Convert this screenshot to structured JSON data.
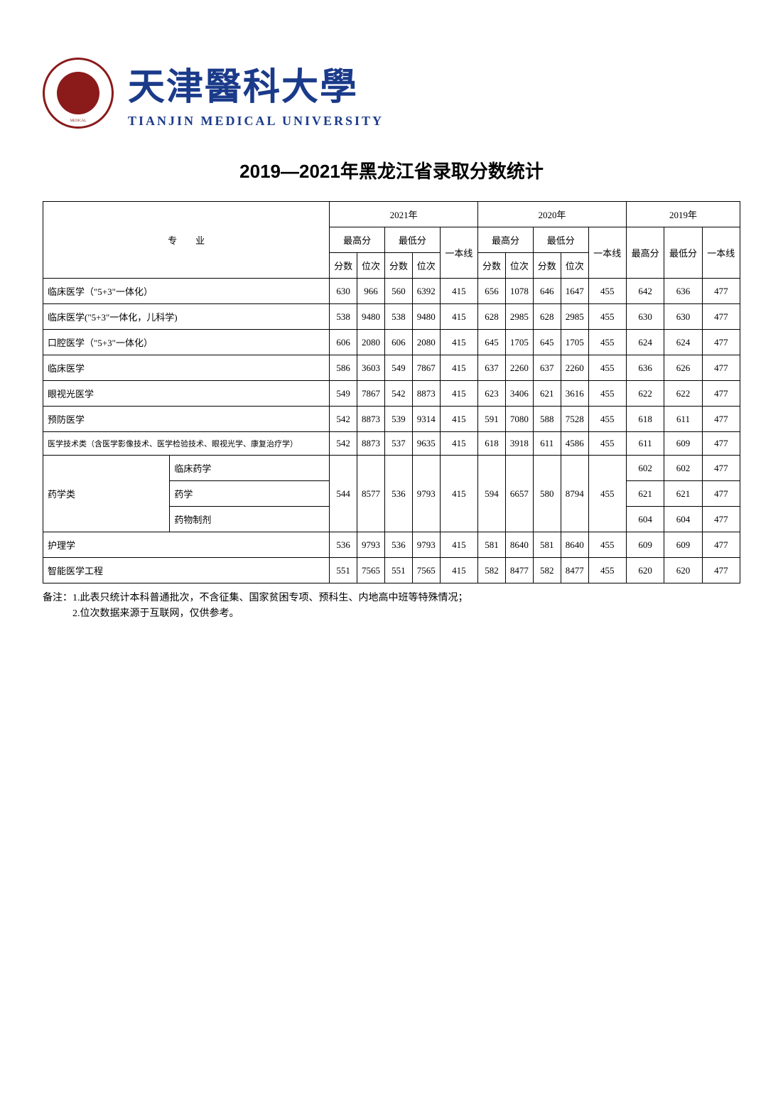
{
  "header": {
    "cn_name": "天津醫科大學",
    "en_name": "TIANJIN MEDICAL UNIVERSITY",
    "logo_text": "MEDICAL"
  },
  "title": "2019—2021年黑龙江省录取分数统计",
  "colors": {
    "logo_red": "#8b1a1a",
    "name_blue": "#1a3a8a",
    "border": "#000000",
    "background": "#ffffff"
  },
  "table": {
    "header_major": "专　　业",
    "year_2021": "2021年",
    "year_2020": "2020年",
    "year_2019": "2019年",
    "max_score": "最高分",
    "min_score": "最低分",
    "score_col": "分数",
    "rank_col": "位次",
    "line_col": "一本线",
    "max_col_2019": "最高分",
    "min_col_2019": "最低分"
  },
  "rows": [
    {
      "major": "临床医学（\"5+3\"一体化）",
      "y21_max_s": 630,
      "y21_max_r": 966,
      "y21_min_s": 560,
      "y21_min_r": 6392,
      "y21_line": 415,
      "y20_max_s": 656,
      "y20_max_r": 1078,
      "y20_min_s": 646,
      "y20_min_r": 1647,
      "y20_line": 455,
      "y19_max": 642,
      "y19_min": 636,
      "y19_line": 477
    },
    {
      "major": "临床医学(\"5+3\"一体化，儿科学)",
      "y21_max_s": 538,
      "y21_max_r": 9480,
      "y21_min_s": 538,
      "y21_min_r": 9480,
      "y21_line": 415,
      "y20_max_s": 628,
      "y20_max_r": 2985,
      "y20_min_s": 628,
      "y20_min_r": 2985,
      "y20_line": 455,
      "y19_max": 630,
      "y19_min": 630,
      "y19_line": 477
    },
    {
      "major": "口腔医学（\"5+3\"一体化）",
      "y21_max_s": 606,
      "y21_max_r": 2080,
      "y21_min_s": 606,
      "y21_min_r": 2080,
      "y21_line": 415,
      "y20_max_s": 645,
      "y20_max_r": 1705,
      "y20_min_s": 645,
      "y20_min_r": 1705,
      "y20_line": 455,
      "y19_max": 624,
      "y19_min": 624,
      "y19_line": 477
    },
    {
      "major": "临床医学",
      "y21_max_s": 586,
      "y21_max_r": 3603,
      "y21_min_s": 549,
      "y21_min_r": 7867,
      "y21_line": 415,
      "y20_max_s": 637,
      "y20_max_r": 2260,
      "y20_min_s": 637,
      "y20_min_r": 2260,
      "y20_line": 455,
      "y19_max": 636,
      "y19_min": 626,
      "y19_line": 477
    },
    {
      "major": "眼视光医学",
      "y21_max_s": 549,
      "y21_max_r": 7867,
      "y21_min_s": 542,
      "y21_min_r": 8873,
      "y21_line": 415,
      "y20_max_s": 623,
      "y20_max_r": 3406,
      "y20_min_s": 621,
      "y20_min_r": 3616,
      "y20_line": 455,
      "y19_max": 622,
      "y19_min": 622,
      "y19_line": 477
    },
    {
      "major": "预防医学",
      "y21_max_s": 542,
      "y21_max_r": 8873,
      "y21_min_s": 539,
      "y21_min_r": 9314,
      "y21_line": 415,
      "y20_max_s": 591,
      "y20_max_r": 7080,
      "y20_min_s": 588,
      "y20_min_r": 7528,
      "y20_line": 455,
      "y19_max": 618,
      "y19_min": 611,
      "y19_line": 477
    },
    {
      "major": "医学技术类（含医学影像技术、医学检验技术、眼视光学、康复治疗学）",
      "small": true,
      "y21_max_s": 542,
      "y21_max_r": 8873,
      "y21_min_s": 537,
      "y21_min_r": 9635,
      "y21_line": 415,
      "y20_max_s": 618,
      "y20_max_r": 3918,
      "y20_min_s": 611,
      "y20_min_r": 4586,
      "y20_line": 455,
      "y19_max": 611,
      "y19_min": 609,
      "y19_line": 477
    }
  ],
  "pharmacy_group": {
    "group_label": "药学类",
    "sub1": "临床药学",
    "sub2": "药学",
    "sub3": "药物制剂",
    "y21_max_s": 544,
    "y21_max_r": 8577,
    "y21_min_s": 536,
    "y21_min_r": 9793,
    "y21_line": 415,
    "y20_max_s": 594,
    "y20_max_r": 6657,
    "y20_min_s": 580,
    "y20_min_r": 8794,
    "y20_line": 455,
    "sub1_y19_max": 602,
    "sub1_y19_min": 602,
    "sub1_y19_line": 477,
    "sub2_y19_max": 621,
    "sub2_y19_min": 621,
    "sub2_y19_line": 477,
    "sub3_y19_max": 604,
    "sub3_y19_min": 604,
    "sub3_y19_line": 477
  },
  "rows_after": [
    {
      "major": "护理学",
      "y21_max_s": 536,
      "y21_max_r": 9793,
      "y21_min_s": 536,
      "y21_min_r": 9793,
      "y21_line": 415,
      "y20_max_s": 581,
      "y20_max_r": 8640,
      "y20_min_s": 581,
      "y20_min_r": 8640,
      "y20_line": 455,
      "y19_max": 609,
      "y19_min": 609,
      "y19_line": 477
    },
    {
      "major": "智能医学工程",
      "y21_max_s": 551,
      "y21_max_r": 7565,
      "y21_min_s": 551,
      "y21_min_r": 7565,
      "y21_line": 415,
      "y20_max_s": 582,
      "y20_max_r": 8477,
      "y20_min_s": 582,
      "y20_min_r": 8477,
      "y20_line": 455,
      "y19_max": 620,
      "y19_min": 620,
      "y19_line": 477
    }
  ],
  "notes": {
    "line1": "备注：1.此表只统计本科普通批次，不含征集、国家贫困专项、预科生、内地高中班等特殊情况；",
    "line2": "　　　2.位次数据来源于互联网，仅供参考。"
  }
}
